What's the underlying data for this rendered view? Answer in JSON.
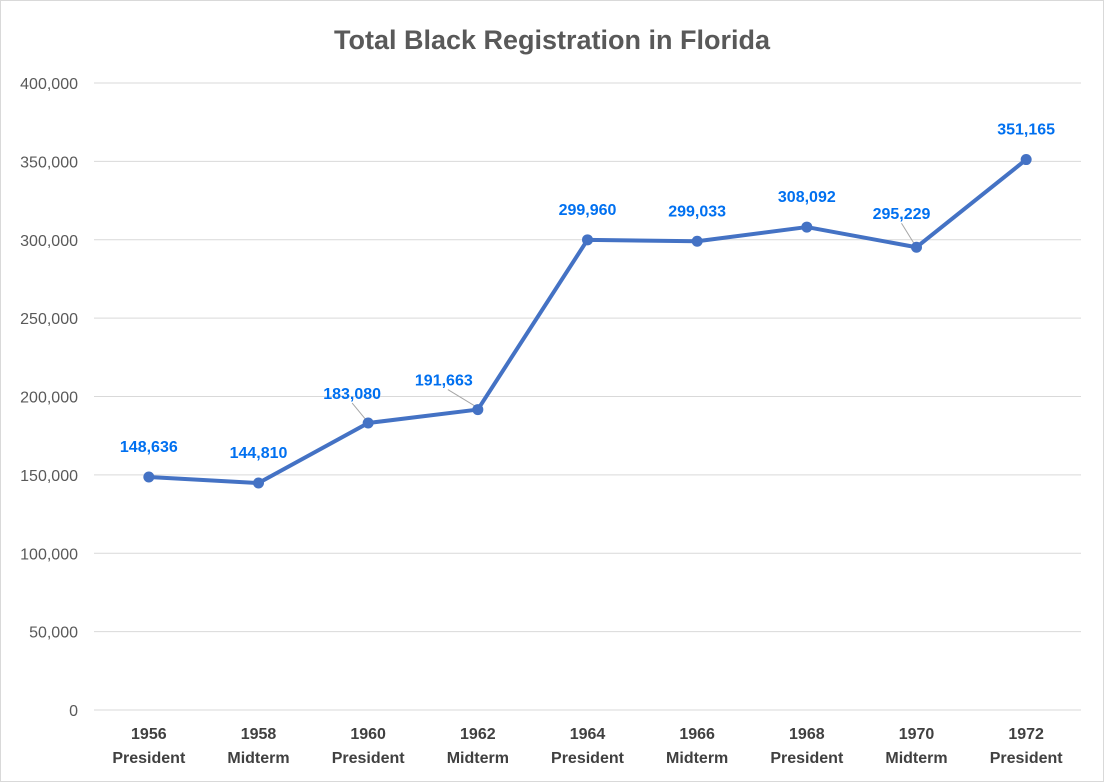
{
  "chart_data": {
    "type": "line",
    "title": "Total Black Registration in Florida",
    "xlabel": "",
    "ylabel": "",
    "categories": [
      [
        "1956",
        "President"
      ],
      [
        "1958",
        "Midterm"
      ],
      [
        "1960",
        "President"
      ],
      [
        "1962",
        "Midterm"
      ],
      [
        "1964",
        "President"
      ],
      [
        "1966",
        "Midterm"
      ],
      [
        "1968",
        "President"
      ],
      [
        "1970",
        "Midterm"
      ],
      [
        "1972",
        "President"
      ]
    ],
    "series": [
      {
        "values": [
          148636,
          144810,
          183080,
          191663,
          299960,
          299033,
          308092,
          295229,
          351165
        ],
        "data_labels": [
          "148,636",
          "144,810",
          "183,080",
          "191,663",
          "299,960",
          "299,033",
          "308,092",
          "295,229",
          "351,165"
        ],
        "color": "#4472c4"
      }
    ],
    "ylim": [
      0,
      400000
    ],
    "yticks": [
      0,
      50000,
      100000,
      150000,
      200000,
      250000,
      300000,
      350000,
      400000
    ],
    "ytick_labels": [
      "0",
      "50,000",
      "100,000",
      "150,000",
      "200,000",
      "250,000",
      "300,000",
      "350,000",
      "400,000"
    ],
    "grid": true,
    "legend": "none",
    "label_color": "#0070f0"
  }
}
